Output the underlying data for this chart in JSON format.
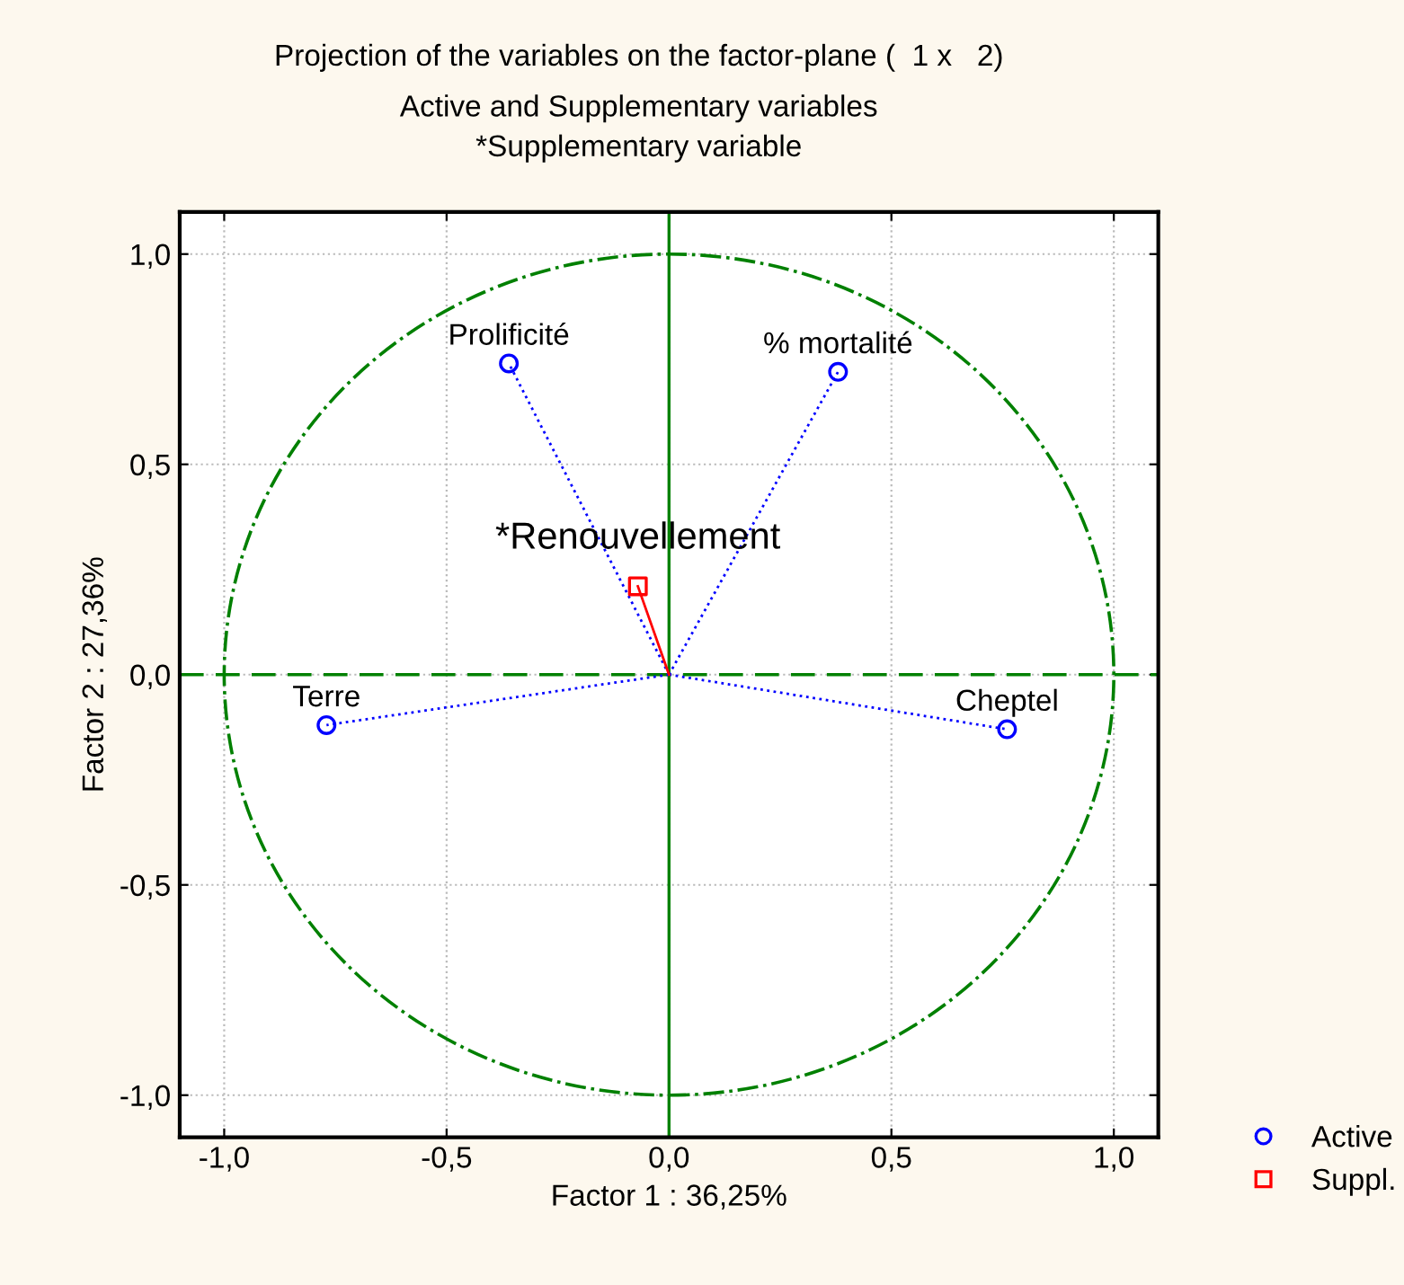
{
  "chart_data": {
    "type": "scatter",
    "title": "Projection of the variables on the factor-plane (  1 x   2)",
    "subtitle": "Active and Supplementary variables\n*Supplementary variable",
    "xlabel": "Factor 1 : 36,25%",
    "ylabel": "Factor 2 : 27,36%",
    "series": [
      {
        "name": "Active",
        "color": "#0000ff",
        "marker": "circle",
        "line_style": "dotted",
        "x": [
          -0.36,
          0.38,
          -0.77,
          0.76
        ],
        "values": [
          0.74,
          0.72,
          -0.12,
          -0.13
        ]
      },
      {
        "name": "Suppl.",
        "color": "#ff0000",
        "marker": "square",
        "line_style": "solid",
        "x": [
          -0.07
        ],
        "values": [
          0.21
        ]
      }
    ],
    "annotations": [
      {
        "text": "Prolificité",
        "x": -0.36,
        "y": 0.74
      },
      {
        "text": "% mortalité",
        "x": 0.38,
        "y": 0.72
      },
      {
        "text": "Terre",
        "x": -0.77,
        "y": -0.12
      },
      {
        "text": "Cheptel",
        "x": 0.76,
        "y": -0.13
      },
      {
        "text": "*Renouvellement",
        "x": -0.07,
        "y": 0.21
      }
    ],
    "ref_lines": [
      {
        "axis": "x",
        "value": 0,
        "color": "#008000",
        "line_style": "solid"
      },
      {
        "axis": "y",
        "value": 0,
        "color": "#008000",
        "line_style": "dashed"
      }
    ],
    "xlim": [
      -1.1,
      1.1
    ],
    "ylim": [
      -1.1,
      1.1
    ],
    "xticks": [
      {
        "value": -1.0,
        "label": "-1,0"
      },
      {
        "value": -0.5,
        "label": "-0,5"
      },
      {
        "value": 0.0,
        "label": "0,0"
      },
      {
        "value": 0.5,
        "label": "0,5"
      },
      {
        "value": 1.0,
        "label": "1,0"
      }
    ],
    "yticks": [
      {
        "value": -1.0,
        "label": "-1,0"
      },
      {
        "value": -0.5,
        "label": "-0,5"
      },
      {
        "value": 0.0,
        "label": "0,0"
      },
      {
        "value": 0.5,
        "label": "0,5"
      },
      {
        "value": 1.0,
        "label": "1,0"
      }
    ],
    "grid": true,
    "legend": "bottom right"
  }
}
